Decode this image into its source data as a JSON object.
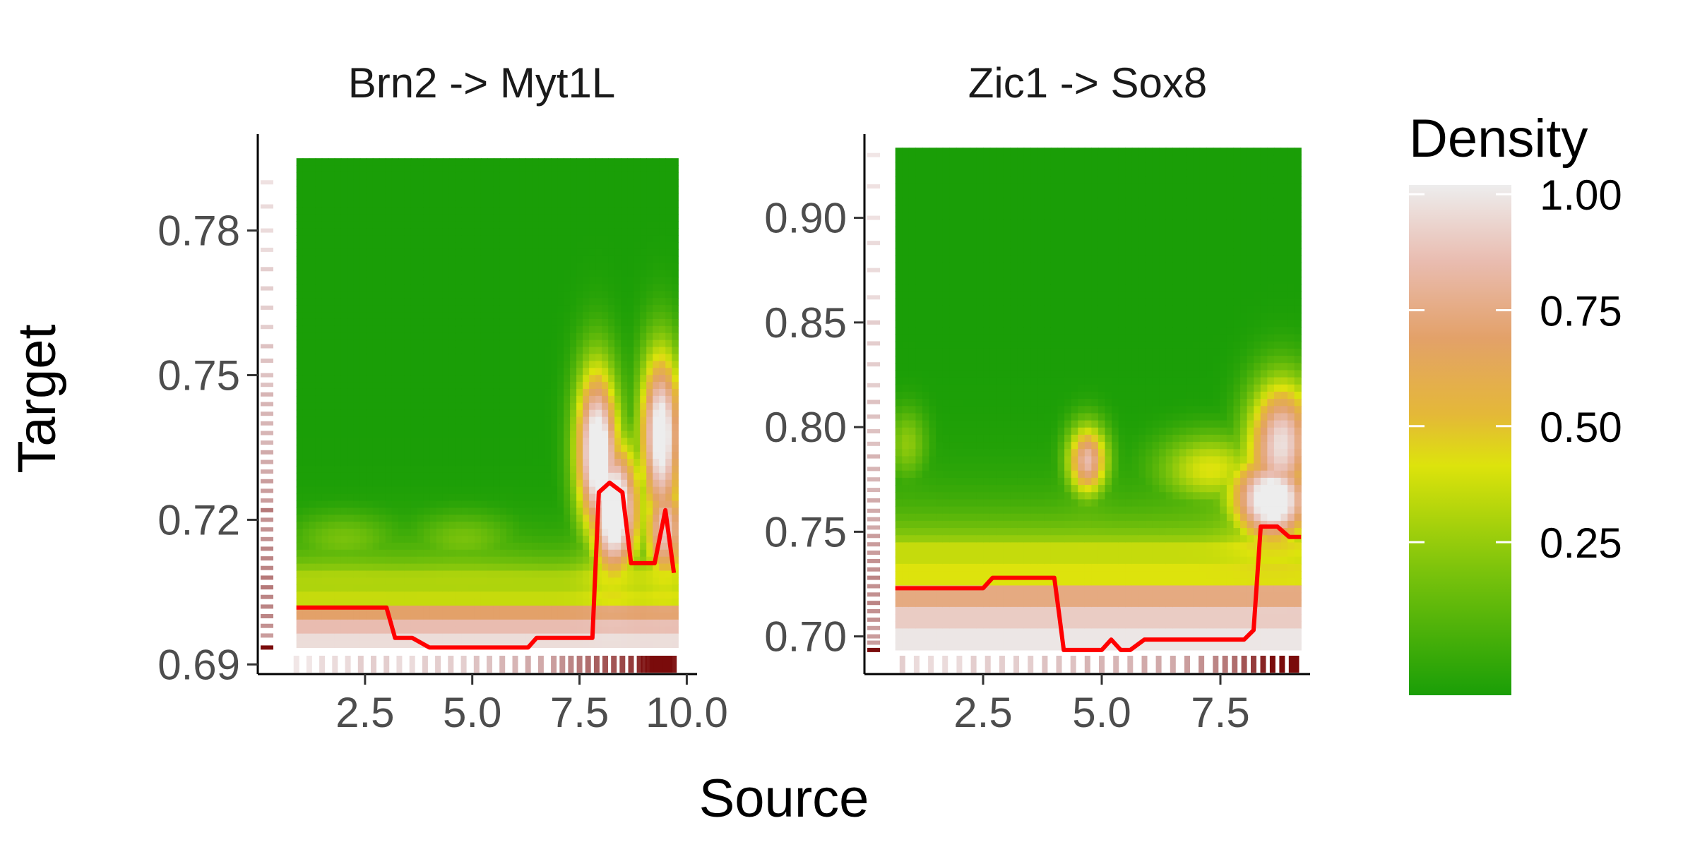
{
  "chart_data": {
    "type": "heatmap",
    "xlabel": "Source",
    "ylabel": "Target",
    "legend": {
      "title": "Density",
      "placement": "right",
      "breaks": [
        1.0,
        0.75,
        0.5,
        0.25
      ],
      "labels": [
        "1.00",
        "0.75",
        "0.50",
        "0.25"
      ],
      "gradient": [
        {
          "value": 0.0,
          "color": "#1a9e07"
        },
        {
          "value": 0.25,
          "color": "#7ec40c"
        },
        {
          "value": 0.45,
          "color": "#dde30c"
        },
        {
          "value": 0.55,
          "color": "#e4b838"
        },
        {
          "value": 0.7,
          "color": "#e3a169"
        },
        {
          "value": 0.85,
          "color": "#e9bcb0"
        },
        {
          "value": 1.0,
          "color": "#ededed"
        }
      ]
    },
    "rug_color": "#7a0b0b",
    "line_color": "#ff0000",
    "panels": [
      {
        "title": "Brn2 -> Myt1L",
        "xlim": [
          0.0,
          10.24
        ],
        "ylim": [
          0.688,
          0.8
        ]
      },
      {
        "title": "Zic1 -> Sox8",
        "xlim": [
          0.0,
          9.39
        ],
        "ylim": [
          0.682,
          0.94
        ]
      }
    ]
  },
  "panels": [
    {
      "title": "Brn2 -> Myt1L",
      "data_xmin": 0.9,
      "data_xmax": 9.8,
      "data_ymin": 0.6935,
      "data_ymax": 0.795,
      "x_ticks": [
        2.5,
        5.0,
        7.5,
        10.0
      ],
      "x_tick_labels": [
        "2.5",
        "5.0",
        "7.5",
        "10.0"
      ],
      "y_ticks": [
        0.69,
        0.72,
        0.75,
        0.78
      ],
      "y_tick_labels": [
        "0.69",
        "0.72",
        "0.75",
        "0.78"
      ],
      "red_line": {
        "x": [
          0.9,
          3.0,
          3.2,
          3.6,
          4.0,
          5.0,
          6.0,
          6.3,
          6.5,
          7.0,
          7.5,
          7.8,
          7.95,
          8.2,
          8.5,
          8.7,
          9.0,
          9.25,
          9.5,
          9.7
        ],
        "y": [
          0.7018,
          0.7018,
          0.6955,
          0.6955,
          0.6935,
          0.6935,
          0.6935,
          0.6935,
          0.6955,
          0.6955,
          0.6955,
          0.6955,
          0.7257,
          0.7277,
          0.7257,
          0.711,
          0.711,
          0.711,
          0.722,
          0.709
        ]
      },
      "density_field": {
        "base_floor": [
          0.35,
          0.4,
          0.7,
          0.85,
          0.95
        ],
        "blobs": [
          {
            "x": 7.9,
            "y": 0.735,
            "sx": 0.35,
            "sy": 0.012,
            "a": 0.85
          },
          {
            "x": 8.3,
            "y": 0.722,
            "sx": 0.4,
            "sy": 0.01,
            "a": 0.95
          },
          {
            "x": 9.4,
            "y": 0.738,
            "sx": 0.35,
            "sy": 0.012,
            "a": 0.85
          },
          {
            "x": 9.5,
            "y": 0.718,
            "sx": 0.35,
            "sy": 0.008,
            "a": 0.7
          },
          {
            "x": 2.0,
            "y": 0.716,
            "sx": 0.9,
            "sy": 0.004,
            "a": 0.18
          },
          {
            "x": 4.8,
            "y": 0.716,
            "sx": 0.9,
            "sy": 0.004,
            "a": 0.18
          }
        ],
        "edge_y": 0.7085
      },
      "rug_x": [
        0.9,
        1.2,
        1.5,
        1.8,
        2.1,
        2.4,
        2.7,
        3.0,
        3.3,
        3.6,
        3.9,
        4.2,
        4.5,
        4.8,
        5.1,
        5.4,
        5.7,
        6.0,
        6.3,
        6.6,
        6.9,
        7.1,
        7.3,
        7.5,
        7.7,
        7.9,
        8.1,
        8.3,
        8.5,
        8.7,
        8.9,
        9.0,
        9.1,
        9.2,
        9.3,
        9.4,
        9.5,
        9.6,
        9.7
      ],
      "rug_x_intensity": [
        0.1,
        0.1,
        0.15,
        0.15,
        0.15,
        0.2,
        0.2,
        0.2,
        0.15,
        0.15,
        0.2,
        0.2,
        0.2,
        0.2,
        0.25,
        0.25,
        0.3,
        0.3,
        0.35,
        0.35,
        0.4,
        0.45,
        0.5,
        0.55,
        0.6,
        0.65,
        0.7,
        0.7,
        0.75,
        0.8,
        0.85,
        0.9,
        0.95,
        1.0,
        1.0,
        1.0,
        1.0,
        1.0,
        0.95
      ],
      "rug_y": [
        0.6935,
        0.696,
        0.698,
        0.7,
        0.702,
        0.704,
        0.706,
        0.708,
        0.71,
        0.712,
        0.714,
        0.716,
        0.718,
        0.72,
        0.722,
        0.724,
        0.726,
        0.728,
        0.73,
        0.732,
        0.734,
        0.736,
        0.738,
        0.74,
        0.742,
        0.744,
        0.746,
        0.748,
        0.75,
        0.753,
        0.756,
        0.76,
        0.764,
        0.768,
        0.772,
        0.776,
        0.78,
        0.785,
        0.79
      ],
      "rug_y_intensity": [
        1.0,
        0.4,
        0.45,
        0.5,
        0.5,
        0.5,
        0.55,
        0.55,
        0.5,
        0.5,
        0.5,
        0.45,
        0.45,
        0.45,
        0.55,
        0.4,
        0.4,
        0.4,
        0.35,
        0.35,
        0.35,
        0.3,
        0.3,
        0.3,
        0.3,
        0.3,
        0.3,
        0.25,
        0.25,
        0.25,
        0.25,
        0.2,
        0.2,
        0.2,
        0.2,
        0.15,
        0.15,
        0.15,
        0.12
      ]
    },
    {
      "title": "Zic1 -> Sox8",
      "data_xmin": 0.65,
      "data_xmax": 9.2,
      "data_ymin": 0.6935,
      "data_ymax": 0.9335,
      "x_ticks": [
        2.5,
        5.0,
        7.5
      ],
      "x_tick_labels": [
        "2.5",
        "5.0",
        "7.5"
      ],
      "y_ticks": [
        0.7,
        0.75,
        0.8,
        0.85,
        0.9
      ],
      "y_tick_labels": [
        "0.70",
        "0.75",
        "0.80",
        "0.85",
        "0.90"
      ],
      "red_line": {
        "x": [
          0.65,
          2.5,
          2.7,
          3.0,
          3.5,
          4.0,
          4.1,
          4.2,
          4.5,
          5.0,
          5.2,
          5.4,
          5.6,
          5.9,
          6.5,
          7.0,
          8.0,
          8.2,
          8.35,
          8.7,
          8.95,
          9.2
        ],
        "y": [
          0.723,
          0.723,
          0.728,
          0.728,
          0.728,
          0.728,
          0.711,
          0.6935,
          0.6935,
          0.6935,
          0.6985,
          0.6935,
          0.6935,
          0.6985,
          0.6985,
          0.6985,
          0.6985,
          0.703,
          0.7525,
          0.7525,
          0.7475,
          0.7475
        ]
      },
      "density_field": {
        "base_floor": [
          0.4,
          0.45,
          0.75,
          0.9,
          0.98
        ],
        "blobs": [
          {
            "x": 4.7,
            "y": 0.784,
            "sx": 0.3,
            "sy": 0.012,
            "a": 0.65
          },
          {
            "x": 0.9,
            "y": 0.792,
            "sx": 0.3,
            "sy": 0.012,
            "a": 0.22
          },
          {
            "x": 8.8,
            "y": 0.795,
            "sx": 0.5,
            "sy": 0.02,
            "a": 0.7
          },
          {
            "x": 8.6,
            "y": 0.765,
            "sx": 0.6,
            "sy": 0.015,
            "a": 0.9
          },
          {
            "x": 7.3,
            "y": 0.78,
            "sx": 0.8,
            "sy": 0.012,
            "a": 0.35
          }
        ],
        "edge_y": 0.744
      },
      "rug_x": [
        0.8,
        1.1,
        1.4,
        1.7,
        2.0,
        2.3,
        2.6,
        2.9,
        3.2,
        3.5,
        3.8,
        4.1,
        4.4,
        4.7,
        5.0,
        5.3,
        5.6,
        5.9,
        6.2,
        6.5,
        6.8,
        7.1,
        7.4,
        7.6,
        7.8,
        8.0,
        8.2,
        8.4,
        8.6,
        8.8,
        9.0,
        9.1
      ],
      "rug_x_intensity": [
        0.2,
        0.15,
        0.15,
        0.15,
        0.15,
        0.2,
        0.2,
        0.2,
        0.2,
        0.2,
        0.25,
        0.25,
        0.25,
        0.3,
        0.3,
        0.3,
        0.3,
        0.35,
        0.35,
        0.35,
        0.4,
        0.45,
        0.5,
        0.55,
        0.6,
        0.7,
        0.8,
        0.9,
        1.0,
        1.0,
        1.0,
        1.0
      ],
      "rug_y": [
        0.6935,
        0.697,
        0.7,
        0.704,
        0.708,
        0.712,
        0.716,
        0.72,
        0.724,
        0.728,
        0.732,
        0.736,
        0.74,
        0.744,
        0.748,
        0.752,
        0.756,
        0.76,
        0.765,
        0.77,
        0.775,
        0.78,
        0.786,
        0.792,
        0.798,
        0.805,
        0.812,
        0.82,
        0.83,
        0.84,
        0.85,
        0.862,
        0.875,
        0.888,
        0.9,
        0.915,
        0.93
      ],
      "rug_y_intensity": [
        1.0,
        0.4,
        0.4,
        0.4,
        0.45,
        0.45,
        0.5,
        0.45,
        0.45,
        0.5,
        0.45,
        0.45,
        0.4,
        0.4,
        0.4,
        0.35,
        0.35,
        0.35,
        0.35,
        0.3,
        0.3,
        0.3,
        0.3,
        0.25,
        0.25,
        0.25,
        0.25,
        0.2,
        0.2,
        0.2,
        0.2,
        0.15,
        0.15,
        0.15,
        0.12,
        0.12,
        0.1
      ]
    }
  ]
}
